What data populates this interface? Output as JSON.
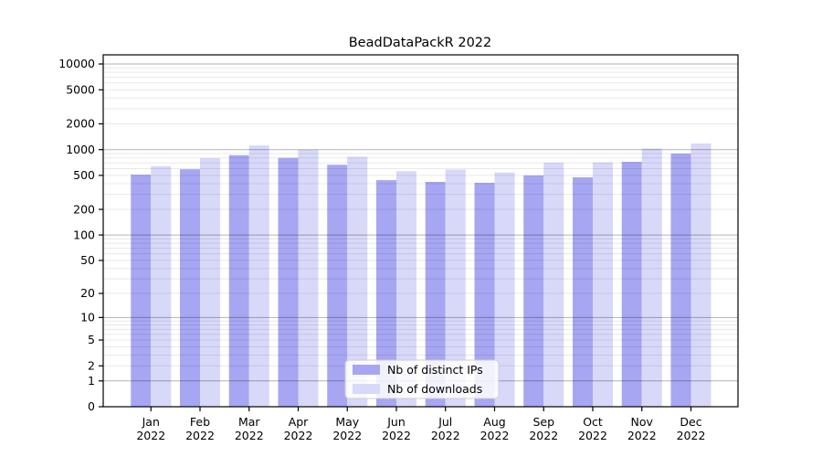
{
  "title": "BeadDataPackR 2022",
  "chart_data": {
    "type": "bar",
    "title": "BeadDataPackR 2022",
    "categories": [
      "Jan",
      "Feb",
      "Mar",
      "Apr",
      "May",
      "Jun",
      "Jul",
      "Aug",
      "Sep",
      "Oct",
      "Nov",
      "Dec"
    ],
    "x_tick_second_line": "2022",
    "series": [
      {
        "name": "Nb of distinct IPs",
        "color": "#a6a6f2",
        "values": [
          510,
          590,
          860,
          800,
          665,
          440,
          420,
          410,
          500,
          475,
          720,
          900
        ]
      },
      {
        "name": "Nb of downloads",
        "color": "#d8d8f9",
        "values": [
          640,
          795,
          1120,
          1000,
          825,
          560,
          585,
          540,
          705,
          710,
          1030,
          1180
        ]
      }
    ],
    "y_scale": "log10(1+x)",
    "y_ticks": [
      0,
      1,
      2,
      5,
      10,
      20,
      50,
      100,
      200,
      500,
      1000,
      2000,
      5000,
      10000
    ],
    "ylim": [
      0,
      12800
    ],
    "xlabel": "",
    "ylabel": "",
    "grid": "on",
    "legend_position": "lower center"
  },
  "colors": {
    "bar_ips": "#a6a6f2",
    "bar_downloads": "#d8d8f9",
    "grid_major": "rgba(0,0,0,0.30)",
    "grid_minor": "rgba(0,0,0,0.09)",
    "axis": "#000000",
    "legend_border": "#cccccc",
    "legend_bg": "rgba(255,255,255,0.85)"
  }
}
